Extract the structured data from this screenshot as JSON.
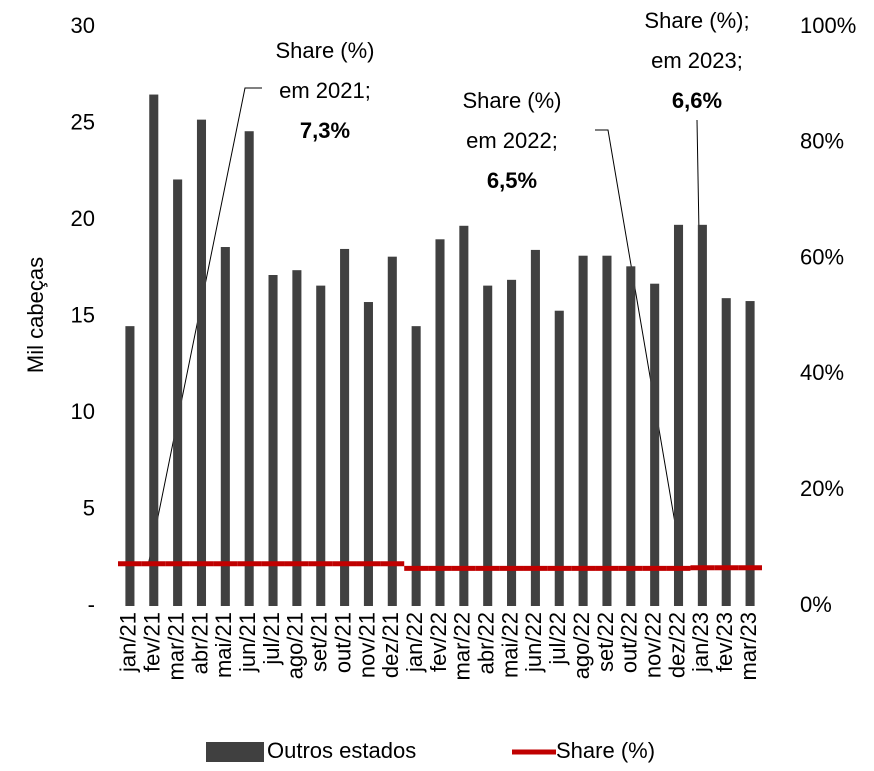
{
  "chart_data": {
    "type": "bar",
    "categories": [
      "jan/21",
      "fev/21",
      "mar/21",
      "abr/21",
      "mai/21",
      "jun/21",
      "jul/21",
      "ago/21",
      "set/21",
      "out/21",
      "nov/21",
      "dez/21",
      "jan/22",
      "fev/22",
      "mar/22",
      "abr/22",
      "mai/22",
      "jun/22",
      "jul/22",
      "ago/22",
      "set/22",
      "out/22",
      "nov/22",
      "dez/22",
      "jan/23",
      "fev/23",
      "mar/23"
    ],
    "series": [
      {
        "name": "Outros estados",
        "color": "#404040",
        "type": "bar",
        "values": [
          14.5,
          26.5,
          22.1,
          25.2,
          18.6,
          24.6,
          17.15,
          17.4,
          16.6,
          18.5,
          15.75,
          18.1,
          14.5,
          19.0,
          19.7,
          16.6,
          16.9,
          18.45,
          15.3,
          18.15,
          18.15,
          17.6,
          16.7,
          19.75,
          19.75,
          15.95,
          15.8
        ]
      },
      {
        "name": "Share (%)",
        "color": "#c00000",
        "type": "line",
        "axis": "y2",
        "values": [
          7.3,
          7.3,
          7.3,
          7.3,
          7.3,
          7.3,
          7.3,
          7.3,
          7.3,
          7.3,
          7.3,
          7.3,
          6.5,
          6.5,
          6.5,
          6.5,
          6.5,
          6.5,
          6.5,
          6.5,
          6.5,
          6.5,
          6.5,
          6.5,
          6.6,
          6.6,
          6.6
        ]
      }
    ],
    "ylabel": "Mil cabeças",
    "ylim": [
      0,
      30
    ],
    "yticks": [
      {
        "value": 0,
        "label": "-"
      },
      5,
      10,
      15,
      20,
      25,
      30
    ],
    "y2lim": [
      0,
      100
    ],
    "y2ticks": [
      {
        "value": 0,
        "label": "0%"
      },
      {
        "value": 20,
        "label": "20%"
      },
      {
        "value": 40,
        "label": "40%"
      },
      {
        "value": 60,
        "label": "60%"
      },
      {
        "value": 80,
        "label": "80%"
      },
      {
        "value": 100,
        "label": "100%"
      }
    ],
    "legend": "bottom",
    "annotations": [
      {
        "lines": [
          "Share (%)",
          "em 2021;",
          "7,3%"
        ]
      },
      {
        "lines": [
          "Share (%)",
          "em 2022;",
          "6,5%"
        ]
      },
      {
        "lines": [
          "Share (%);",
          "em 2023;",
          "6,6%"
        ]
      }
    ]
  }
}
